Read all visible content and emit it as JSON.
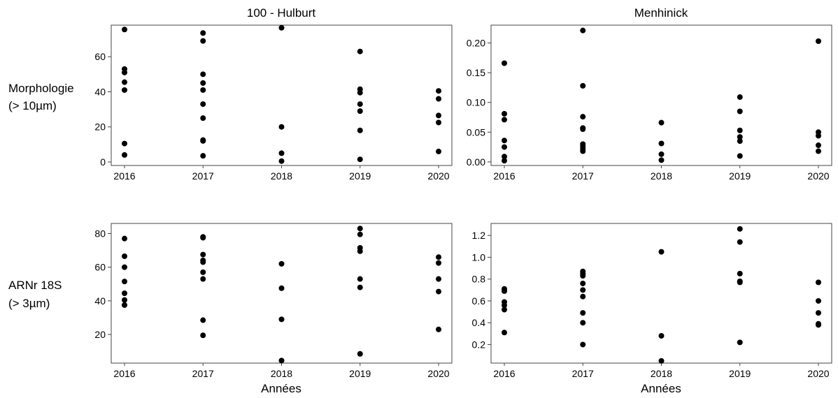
{
  "column_titles": [
    "100 - Hulburt",
    "Menhinick"
  ],
  "row_labels": [
    [
      "Morphologie",
      "(> 10µm)"
    ],
    [
      "ARNr 18S",
      "(> 3µm)"
    ]
  ],
  "x_axis_title": "Années",
  "colors": {
    "points": "#000000",
    "frame": "#444444",
    "background": "#ffffff"
  },
  "chart_data": [
    {
      "type": "scatter",
      "panel": "top-left",
      "title": "100 - Hulburt",
      "row_label": "Morphologie (> 10µm)",
      "xlabel": "",
      "categories": [
        "2016",
        "2017",
        "2018",
        "2019",
        "2020"
      ],
      "ylim": [
        -2,
        78
      ],
      "yticks": [
        0,
        20,
        40,
        60
      ],
      "ytick_labels": [
        "0",
        "20",
        "40",
        "60"
      ],
      "grid": false,
      "series": [
        {
          "points": [
            [
              "2016",
              75.5
            ],
            [
              "2016",
              53
            ],
            [
              "2016",
              51
            ],
            [
              "2016",
              45.5
            ],
            [
              "2016",
              41
            ],
            [
              "2016",
              10.5
            ],
            [
              "2016",
              4
            ],
            [
              "2017",
              73.5
            ],
            [
              "2017",
              69
            ],
            [
              "2017",
              50
            ],
            [
              "2017",
              45
            ],
            [
              "2017",
              41
            ],
            [
              "2017",
              33
            ],
            [
              "2017",
              25
            ],
            [
              "2017",
              12.5
            ],
            [
              "2017",
              12
            ],
            [
              "2017",
              3.5
            ],
            [
              "2018",
              76.5
            ],
            [
              "2018",
              20
            ],
            [
              "2018",
              5
            ],
            [
              "2018",
              0.5
            ],
            [
              "2019",
              63
            ],
            [
              "2019",
              41.5
            ],
            [
              "2019",
              39.5
            ],
            [
              "2019",
              33
            ],
            [
              "2019",
              29
            ],
            [
              "2019",
              18
            ],
            [
              "2019",
              1.5
            ],
            [
              "2020",
              40.5
            ],
            [
              "2020",
              36
            ],
            [
              "2020",
              26.5
            ],
            [
              "2020",
              22.5
            ],
            [
              "2020",
              6
            ]
          ]
        }
      ]
    },
    {
      "type": "scatter",
      "panel": "top-right",
      "title": "Menhinick",
      "row_label": "Morphologie (> 10µm)",
      "xlabel": "",
      "categories": [
        "2016",
        "2017",
        "2018",
        "2019",
        "2020"
      ],
      "ylim": [
        -0.006,
        0.23
      ],
      "yticks": [
        0,
        0.05,
        0.1,
        0.15,
        0.2
      ],
      "ytick_labels": [
        "0.00",
        "0.05",
        "0.10",
        "0.15",
        "0.20"
      ],
      "grid": false,
      "series": [
        {
          "points": [
            [
              "2016",
              0.166
            ],
            [
              "2016",
              0.081
            ],
            [
              "2016",
              0.071
            ],
            [
              "2016",
              0.036
            ],
            [
              "2016",
              0.025
            ],
            [
              "2016",
              0.009
            ],
            [
              "2016",
              0.002
            ],
            [
              "2017",
              0.221
            ],
            [
              "2017",
              0.128
            ],
            [
              "2017",
              0.076
            ],
            [
              "2017",
              0.057
            ],
            [
              "2017",
              0.055
            ],
            [
              "2017",
              0.03
            ],
            [
              "2017",
              0.026
            ],
            [
              "2017",
              0.022
            ],
            [
              "2017",
              0.018
            ],
            [
              "2018",
              0.066
            ],
            [
              "2018",
              0.031
            ],
            [
              "2018",
              0.013
            ],
            [
              "2018",
              0.003
            ],
            [
              "2019",
              0.109
            ],
            [
              "2019",
              0.085
            ],
            [
              "2019",
              0.053
            ],
            [
              "2019",
              0.042
            ],
            [
              "2019",
              0.035
            ],
            [
              "2019",
              0.01
            ],
            [
              "2020",
              0.203
            ],
            [
              "2020",
              0.05
            ],
            [
              "2020",
              0.044
            ],
            [
              "2020",
              0.028
            ],
            [
              "2020",
              0.018
            ]
          ]
        }
      ]
    },
    {
      "type": "scatter",
      "panel": "bottom-left",
      "title": "",
      "row_label": "ARNr 18S (> 3µm)",
      "xlabel": "Années",
      "categories": [
        "2016",
        "2017",
        "2018",
        "2019",
        "2020"
      ],
      "ylim": [
        3,
        86
      ],
      "yticks": [
        20,
        40,
        60,
        80
      ],
      "ytick_labels": [
        "20",
        "40",
        "60",
        "80"
      ],
      "grid": false,
      "series": [
        {
          "points": [
            [
              "2016",
              77
            ],
            [
              "2016",
              66.5
            ],
            [
              "2016",
              60
            ],
            [
              "2016",
              51.5
            ],
            [
              "2016",
              44.5
            ],
            [
              "2016",
              40.5
            ],
            [
              "2016",
              37.5
            ],
            [
              "2017",
              78
            ],
            [
              "2017",
              77.5
            ],
            [
              "2017",
              67.5
            ],
            [
              "2017",
              64
            ],
            [
              "2017",
              63
            ],
            [
              "2017",
              57
            ],
            [
              "2017",
              53
            ],
            [
              "2017",
              28.5
            ],
            [
              "2017",
              19.5
            ],
            [
              "2018",
              62
            ],
            [
              "2018",
              47.5
            ],
            [
              "2018",
              29
            ],
            [
              "2018",
              4.5
            ],
            [
              "2019",
              83
            ],
            [
              "2019",
              79.5
            ],
            [
              "2019",
              71.5
            ],
            [
              "2019",
              69.5
            ],
            [
              "2019",
              53
            ],
            [
              "2019",
              48
            ],
            [
              "2019",
              8.5
            ],
            [
              "2020",
              66
            ],
            [
              "2020",
              62.5
            ],
            [
              "2020",
              53
            ],
            [
              "2020",
              45.5
            ],
            [
              "2020",
              23
            ]
          ]
        }
      ]
    },
    {
      "type": "scatter",
      "panel": "bottom-right",
      "title": "",
      "row_label": "ARNr 18S (> 3µm)",
      "xlabel": "Années",
      "categories": [
        "2016",
        "2017",
        "2018",
        "2019",
        "2020"
      ],
      "ylim": [
        0.03,
        1.31
      ],
      "yticks": [
        0.2,
        0.4,
        0.6,
        0.8,
        1.0,
        1.2
      ],
      "ytick_labels": [
        "0.2",
        "0.4",
        "0.6",
        "0.8",
        "1.0",
        "1.2"
      ],
      "grid": false,
      "series": [
        {
          "points": [
            [
              "2016",
              0.71
            ],
            [
              "2016",
              0.69
            ],
            [
              "2016",
              0.59
            ],
            [
              "2016",
              0.56
            ],
            [
              "2016",
              0.52
            ],
            [
              "2016",
              0.31
            ],
            [
              "2017",
              0.87
            ],
            [
              "2017",
              0.85
            ],
            [
              "2017",
              0.83
            ],
            [
              "2017",
              0.76
            ],
            [
              "2017",
              0.7
            ],
            [
              "2017",
              0.64
            ],
            [
              "2017",
              0.49
            ],
            [
              "2017",
              0.4
            ],
            [
              "2017",
              0.2
            ],
            [
              "2018",
              1.05
            ],
            [
              "2018",
              0.28
            ],
            [
              "2018",
              0.05
            ],
            [
              "2019",
              1.26
            ],
            [
              "2019",
              1.14
            ],
            [
              "2019",
              0.85
            ],
            [
              "2019",
              0.78
            ],
            [
              "2019",
              0.77
            ],
            [
              "2019",
              0.22
            ],
            [
              "2020",
              0.77
            ],
            [
              "2020",
              0.6
            ],
            [
              "2020",
              0.49
            ],
            [
              "2020",
              0.39
            ],
            [
              "2020",
              0.38
            ]
          ]
        }
      ]
    }
  ]
}
